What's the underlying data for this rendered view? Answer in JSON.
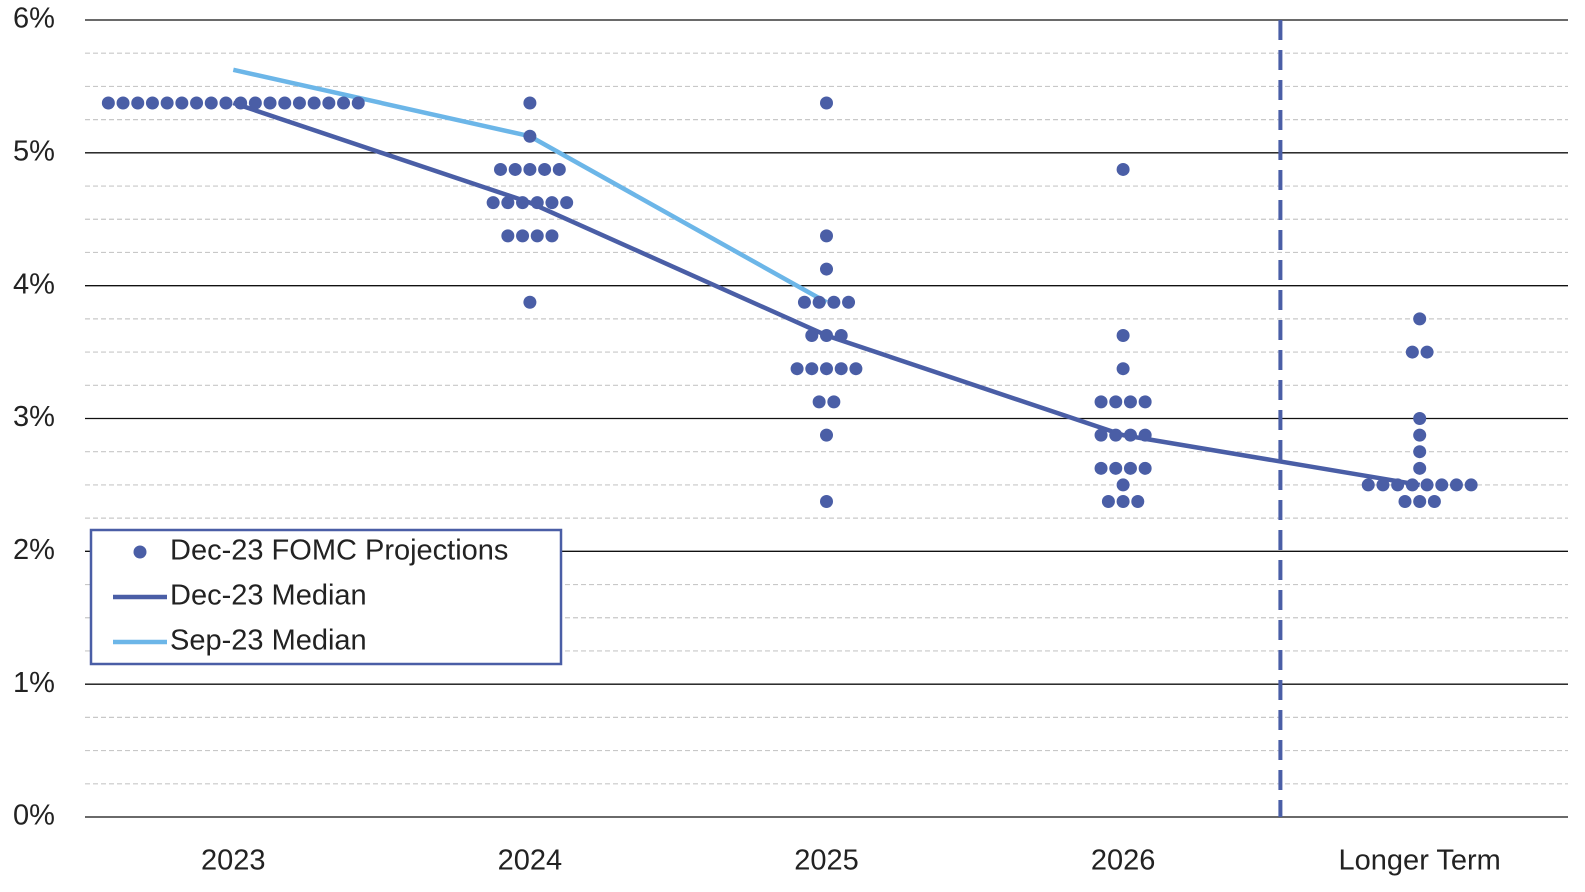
{
  "chart_data": {
    "type": "dot",
    "categories": [
      "2023",
      "2024",
      "2025",
      "2026",
      "Longer Term"
    ],
    "ylim": [
      0,
      6
    ],
    "yticks": [
      {
        "value": 0,
        "label": "0%"
      },
      {
        "value": 1,
        "label": "1%"
      },
      {
        "value": 2,
        "label": "2%"
      },
      {
        "value": 3,
        "label": "3%"
      },
      {
        "value": 4,
        "label": "4%"
      },
      {
        "value": 5,
        "label": "5%"
      },
      {
        "value": 6,
        "label": "6%"
      }
    ],
    "yminorticks": [
      0.25,
      0.5,
      0.75,
      1.25,
      1.5,
      1.75,
      2.25,
      2.5,
      2.75,
      3.25,
      3.5,
      3.75,
      4.25,
      4.5,
      4.75,
      5.25,
      5.5,
      5.75
    ],
    "grid": true,
    "legend": "lower left",
    "series": [
      {
        "name": "Dec-23 FOMC Projections",
        "type": "dot",
        "color": "#4a5ea6",
        "values": [
          [
            5.375,
            5.375,
            5.375,
            5.375,
            5.375,
            5.375,
            5.375,
            5.375,
            5.375,
            5.375,
            5.375,
            5.375,
            5.375,
            5.375,
            5.375,
            5.375,
            5.375,
            5.375
          ],
          [
            5.375,
            5.125,
            4.875,
            4.875,
            4.875,
            4.875,
            4.875,
            4.625,
            4.625,
            4.625,
            4.625,
            4.625,
            4.625,
            4.375,
            4.375,
            4.375,
            4.375,
            3.875
          ],
          [
            5.375,
            4.375,
            4.125,
            3.875,
            3.875,
            3.875,
            3.875,
            3.625,
            3.625,
            3.625,
            3.375,
            3.375,
            3.375,
            3.375,
            3.375,
            3.125,
            3.125,
            2.875,
            2.375
          ],
          [
            4.875,
            3.625,
            3.375,
            3.125,
            3.125,
            3.125,
            3.125,
            2.875,
            2.875,
            2.875,
            2.875,
            2.625,
            2.625,
            2.625,
            2.625,
            2.5,
            2.375,
            2.375,
            2.375
          ],
          [
            3.75,
            3.5,
            3.5,
            3.0,
            2.875,
            2.75,
            2.625,
            2.5,
            2.5,
            2.5,
            2.5,
            2.5,
            2.5,
            2.5,
            2.5,
            2.375,
            2.375,
            2.375
          ]
        ]
      },
      {
        "name": "Dec-23 Median",
        "type": "line",
        "color": "#4a5ea6",
        "values": [
          5.375,
          4.625,
          3.625,
          2.875,
          2.5
        ]
      },
      {
        "name": "Sep-23 Median",
        "type": "line",
        "color": "#6cb6e8",
        "values": [
          5.625,
          5.125,
          3.875,
          null,
          null
        ]
      }
    ]
  }
}
